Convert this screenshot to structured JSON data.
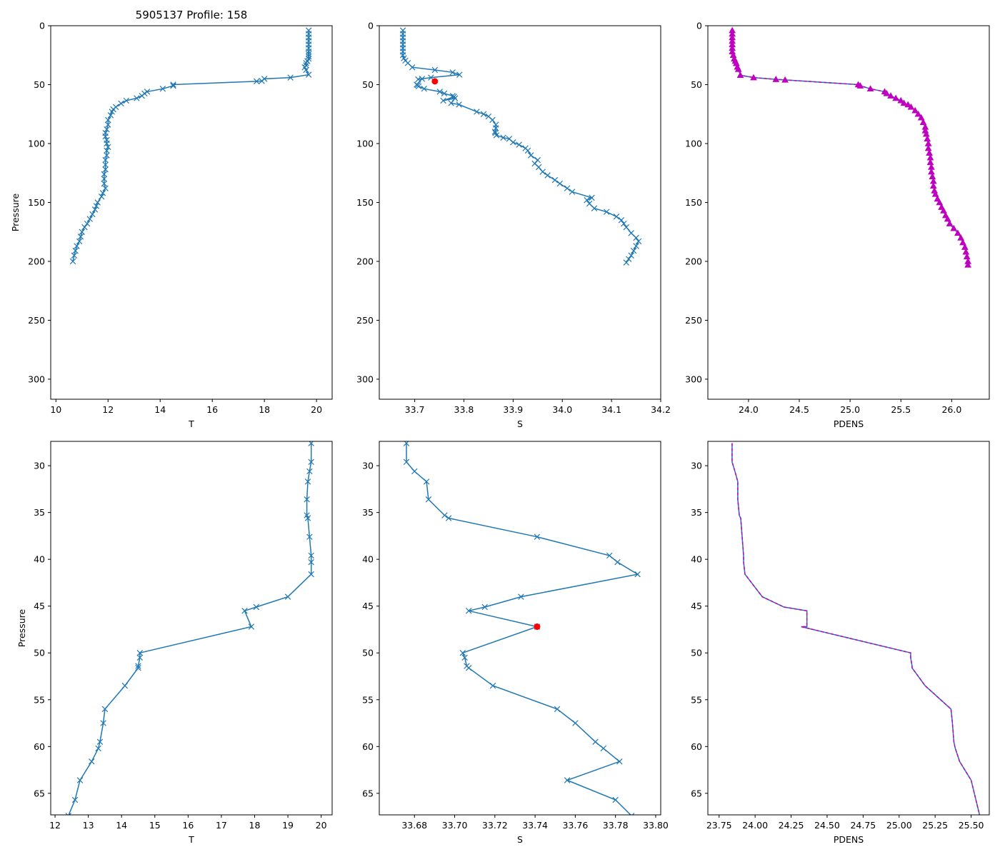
{
  "figure_title": "5905137 Profile: 158",
  "colors": {
    "line": "#1f77b4",
    "marker_qc": "#ff0000",
    "density": "#bf00bf"
  },
  "chart_data": [
    {
      "id": "top-temperature",
      "type": "line",
      "title": "5905137 Profile: 158",
      "xlabel": "T",
      "ylabel": "Pressure",
      "xlim": [
        9.8,
        20.6
      ],
      "ylim": [
        317,
        0
      ],
      "xticks": [
        10,
        12,
        14,
        16,
        18,
        20
      ],
      "yticks": [
        0,
        50,
        100,
        150,
        200,
        250,
        300
      ],
      "marker": "x",
      "series": [
        {
          "name": "T",
          "x": [
            19.7,
            19.7,
            19.7,
            19.7,
            19.7,
            19.7,
            19.7,
            19.7,
            19.7,
            19.7,
            19.65,
            19.6,
            19.6,
            19.55,
            19.6,
            19.7,
            19.0,
            18.0,
            17.9,
            17.7,
            14.5,
            14.5,
            14.1,
            13.5,
            13.4,
            13.3,
            13.1,
            12.7,
            12.5,
            12.3,
            12.2,
            12.15,
            12.1,
            12.0,
            12.0,
            11.95,
            11.9,
            11.9,
            11.95,
            11.95,
            12.0,
            11.95,
            11.95,
            11.9,
            11.9,
            11.9,
            11.85,
            11.85,
            11.85,
            11.9,
            11.8,
            11.75,
            11.6,
            11.55,
            11.5,
            11.4,
            11.3,
            11.2,
            11.1,
            11.0,
            10.95,
            10.9,
            10.8,
            10.75,
            10.7,
            10.65
          ],
          "y": [
            4,
            7,
            10,
            13,
            16,
            19,
            22,
            24,
            26,
            28,
            30,
            31.7,
            33.6,
            35.3,
            37.6,
            41.6,
            44,
            45.1,
            46.9,
            47.2,
            50,
            51,
            53.5,
            56,
            57.5,
            59.5,
            61.5,
            63.6,
            66,
            69,
            71,
            73,
            76,
            80,
            84,
            88,
            91,
            94,
            97,
            100,
            103,
            106,
            110,
            114,
            118,
            122,
            126,
            130,
            134,
            138,
            142,
            145,
            150,
            153,
            156,
            160,
            164,
            168,
            171,
            175,
            179,
            183,
            187,
            191,
            195,
            200
          ]
        }
      ]
    },
    {
      "id": "top-salinity",
      "type": "line",
      "title": "",
      "xlabel": "S",
      "ylabel": "",
      "xlim": [
        33.628,
        34.2
      ],
      "ylim": [
        317,
        0
      ],
      "xticks": [
        33.7,
        33.8,
        33.9,
        34.0,
        34.1,
        34.2
      ],
      "yticks": [
        0,
        50,
        100,
        150,
        200,
        250,
        300
      ],
      "marker": "x",
      "series": [
        {
          "name": "S",
          "x": [
            33.676,
            33.676,
            33.676,
            33.676,
            33.676,
            33.676,
            33.676,
            33.676,
            33.678,
            33.681,
            33.686,
            33.695,
            33.741,
            33.777,
            33.791,
            33.733,
            33.707,
            33.715,
            33.704,
            33.706,
            33.708,
            33.719,
            33.751,
            33.76,
            33.777,
            33.78,
            33.758,
            33.782,
            33.774,
            33.79,
            33.826,
            33.84,
            33.85,
            33.858,
            33.865,
            33.865,
            33.863,
            33.864,
            33.866,
            33.88,
            33.892,
            33.9,
            33.912,
            33.925,
            33.93,
            33.936,
            33.95,
            33.944,
            33.952,
            33.96,
            33.97,
            33.985,
            33.995,
            34.01,
            34.02,
            34.06,
            34.05,
            34.055,
            34.065,
            34.09,
            34.11,
            34.12,
            34.125,
            34.13,
            34.14,
            34.15,
            34.155,
            34.15,
            34.145,
            34.14,
            34.135,
            34.13
          ],
          "y": [
            4,
            7,
            10,
            13,
            16,
            19,
            22,
            25,
            27.6,
            29.6,
            31.7,
            35.3,
            37.6,
            39.6,
            41.6,
            44,
            45.5,
            45.1,
            50,
            50.5,
            51.4,
            53.5,
            56,
            57.5,
            59.6,
            60.2,
            63.6,
            61.6,
            65.7,
            66.9,
            73,
            75,
            77,
            80,
            84,
            87,
            90,
            91,
            93,
            95,
            96,
            99,
            101,
            104,
            106,
            110,
            114,
            117,
            120,
            124,
            127,
            131,
            134,
            138,
            141,
            146,
            148,
            151,
            155,
            158,
            162,
            165,
            168,
            171,
            176,
            180,
            183,
            187,
            191,
            195,
            198,
            201
          ]
        }
      ],
      "highlight": {
        "x": 33.741,
        "y": 47.2
      }
    },
    {
      "id": "top-density",
      "type": "line",
      "title": "",
      "xlabel": "PDENS",
      "ylabel": "",
      "xlim": [
        23.6,
        26.37
      ],
      "ylim": [
        317,
        0
      ],
      "xticks": [
        24.0,
        24.5,
        25.0,
        25.5,
        26.0
      ],
      "yticks": [
        0,
        50,
        100,
        150,
        200,
        250,
        300
      ],
      "marker": "^",
      "series": [
        {
          "name": "PDENS",
          "x": [
            23.84,
            23.84,
            23.84,
            23.84,
            23.84,
            23.84,
            23.84,
            23.85,
            23.86,
            23.87,
            23.88,
            23.89,
            23.9,
            23.92,
            24.05,
            24.27,
            24.36,
            25.08,
            25.1,
            25.2,
            25.34,
            25.36,
            25.4,
            25.45,
            25.5,
            25.53,
            25.57,
            25.6,
            25.64,
            25.67,
            25.7,
            25.72,
            25.74,
            25.74,
            25.75,
            25.76,
            25.77,
            25.77,
            25.78,
            25.79,
            25.79,
            25.8,
            25.8,
            25.81,
            25.82,
            25.82,
            25.83,
            25.84,
            25.86,
            25.88,
            25.9,
            25.92,
            25.94,
            25.96,
            25.98,
            26.02,
            26.06,
            26.09,
            26.11,
            26.13,
            26.14,
            26.15,
            26.16,
            26.16
          ],
          "y": [
            4,
            7,
            10,
            13,
            16,
            19,
            22,
            25,
            28,
            30,
            32,
            35,
            37,
            42,
            44,
            45.5,
            46,
            50,
            51,
            53.5,
            56,
            57.5,
            59.5,
            61.5,
            63.5,
            65.7,
            67,
            69,
            72,
            75,
            78,
            82,
            86,
            89,
            92,
            96,
            100,
            104,
            108,
            112,
            116,
            120,
            124,
            128,
            132,
            136,
            140,
            143,
            147,
            150,
            154,
            157,
            161,
            164,
            168,
            172,
            176,
            180,
            184,
            188,
            192,
            196,
            200,
            203
          ]
        }
      ]
    },
    {
      "id": "bottom-temperature",
      "type": "line",
      "title": "",
      "xlabel": "T",
      "ylabel": "Pressure",
      "xlim": [
        11.87,
        20.33
      ],
      "ylim": [
        67.3,
        27.4
      ],
      "xticks": [
        12,
        13,
        14,
        15,
        16,
        17,
        18,
        19,
        20
      ],
      "yticks": [
        30,
        35,
        40,
        45,
        50,
        55,
        60,
        65
      ],
      "marker": "x",
      "series": [
        {
          "name": "T",
          "x": [
            19.7,
            19.7,
            19.65,
            19.6,
            19.57,
            19.57,
            19.6,
            19.65,
            19.7,
            19.7,
            19.7,
            19.0,
            18.05,
            17.7,
            17.9,
            14.55,
            14.55,
            14.5,
            14.5,
            14.1,
            13.5,
            13.45,
            13.35,
            13.3,
            13.1,
            12.75,
            12.6,
            12.4
          ],
          "y": [
            27.6,
            29.6,
            30.6,
            31.7,
            33.6,
            35.3,
            35.6,
            37.6,
            39.6,
            40.3,
            41.6,
            44,
            45.1,
            45.5,
            47.2,
            50,
            50.5,
            51.4,
            51.6,
            53.5,
            56,
            57.5,
            59.5,
            60.2,
            61.6,
            63.6,
            65.7,
            67.4
          ]
        }
      ]
    },
    {
      "id": "bottom-salinity",
      "type": "line",
      "title": "",
      "xlabel": "S",
      "ylabel": "",
      "xlim": [
        33.6625,
        33.8025
      ],
      "ylim": [
        67.3,
        27.4
      ],
      "xticks": [
        33.68,
        33.7,
        33.72,
        33.74,
        33.76,
        33.78,
        33.8
      ],
      "yticks": [
        30,
        35,
        40,
        45,
        50,
        55,
        60,
        65
      ],
      "marker": "x",
      "series": [
        {
          "name": "S",
          "x": [
            33.676,
            33.676,
            33.68,
            33.686,
            33.687,
            33.695,
            33.697,
            33.741,
            33.777,
            33.781,
            33.791,
            33.733,
            33.715,
            33.707,
            33.741,
            33.704,
            33.705,
            33.706,
            33.707,
            33.719,
            33.751,
            33.76,
            33.77,
            33.774,
            33.782,
            33.756,
            33.78,
            33.788
          ],
          "y": [
            27.6,
            29.6,
            30.6,
            31.7,
            33.6,
            35.3,
            35.6,
            37.6,
            39.6,
            40.3,
            41.6,
            44,
            45.1,
            45.5,
            47.2,
            50,
            50.5,
            51.4,
            51.6,
            53.5,
            56,
            57.5,
            59.5,
            60.2,
            61.6,
            63.6,
            65.7,
            67.4
          ]
        }
      ],
      "highlight": {
        "x": 33.741,
        "y": 47.2
      }
    },
    {
      "id": "bottom-density",
      "type": "line",
      "title": "",
      "xlabel": "PDENS",
      "ylabel": "",
      "xlim": [
        23.672,
        25.626
      ],
      "ylim": [
        67.3,
        27.4
      ],
      "xticks": [
        23.75,
        24.0,
        24.25,
        24.5,
        24.75,
        25.0,
        25.25,
        25.5
      ],
      "yticks": [
        30,
        35,
        40,
        45,
        50,
        55,
        60,
        65
      ],
      "marker": "",
      "series": [
        {
          "name": "PDENS",
          "x": [
            23.84,
            23.84,
            23.86,
            23.88,
            23.88,
            23.89,
            23.9,
            23.91,
            23.92,
            23.92,
            23.93,
            24.05,
            24.2,
            24.36,
            24.36,
            24.32,
            25.08,
            25.08,
            25.09,
            25.09,
            25.18,
            25.36,
            25.37,
            25.38,
            25.39,
            25.42,
            25.5,
            25.56
          ],
          "y": [
            27.6,
            29.6,
            30.6,
            31.7,
            33.6,
            35.3,
            35.6,
            37.6,
            39.6,
            40.3,
            41.6,
            44,
            45.1,
            45.5,
            47.2,
            47.2,
            50,
            50.5,
            51.4,
            51.6,
            53.5,
            56,
            57.5,
            59.5,
            60.2,
            61.6,
            63.6,
            67.4
          ]
        }
      ]
    }
  ]
}
